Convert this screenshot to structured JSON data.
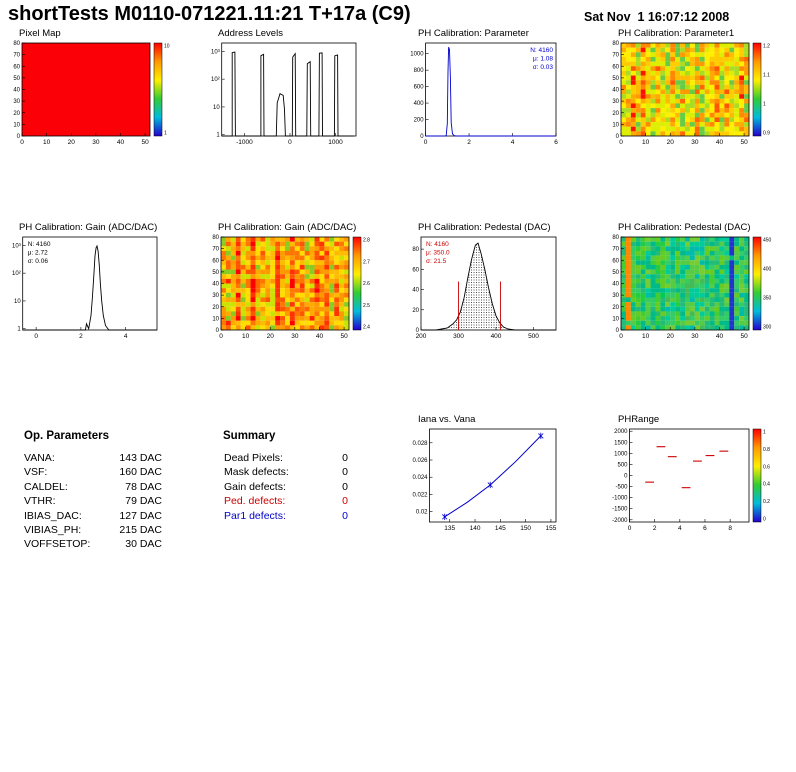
{
  "header": {
    "title": "shortTests M0110-071221.11:21 T+17a (C9)",
    "date": "Sat Nov  1 16:07:12 2008"
  },
  "op_parameters": {
    "title": "Op. Parameters",
    "rows": [
      {
        "label": "VANA:",
        "value": "143 DAC"
      },
      {
        "label": "VSF:",
        "value": "160 DAC"
      },
      {
        "label": "CALDEL:",
        "value": "78 DAC"
      },
      {
        "label": "VTHR:",
        "value": "79 DAC"
      },
      {
        "label": "IBIAS_DAC:",
        "value": "127 DAC"
      },
      {
        "label": "VIBIAS_PH:",
        "value": "215 DAC"
      },
      {
        "label": "VOFFSETOP:",
        "value": "30 DAC"
      }
    ]
  },
  "summary": {
    "title": "Summary",
    "rows": [
      {
        "label": "Dead Pixels:",
        "value": "0",
        "color": "#000000"
      },
      {
        "label": "Mask defects:",
        "value": "0",
        "color": "#000000"
      },
      {
        "label": "Gain defects:",
        "value": "0",
        "color": "#000000"
      },
      {
        "label": "Ped. defects:",
        "value": "0",
        "color": "#cc0000"
      },
      {
        "label": "Par1 defects:",
        "value": "0",
        "color": "#0000cc"
      }
    ]
  },
  "chart_data": [
    {
      "id": "pixel-map",
      "type": "heatmap",
      "title": "Pixel Map",
      "x_range": [
        0,
        52
      ],
      "x_ticks": [
        0,
        10,
        20,
        30,
        40,
        50
      ],
      "y_range": [
        0,
        80
      ],
      "y_ticks": [
        0,
        10,
        20,
        30,
        40,
        50,
        60,
        70,
        80
      ],
      "style": "uniform",
      "uniform_color": "#fb0007",
      "colorbar_labels": [
        "10",
        "1"
      ]
    },
    {
      "id": "address-levels",
      "type": "histogram",
      "title": "Address Levels",
      "log_y": true,
      "x_range": [
        -1500,
        1450
      ],
      "x_ticks": [
        -1000,
        0,
        1000
      ],
      "y_range": [
        0.9,
        2000
      ],
      "y_ticks": [
        [
          1,
          "1"
        ],
        [
          10,
          "10"
        ],
        [
          100,
          "10²"
        ],
        [
          1000,
          "10³"
        ]
      ],
      "line_color": "#000000",
      "outline": [
        [
          -1500,
          0.9
        ],
        [
          -1270,
          0.9
        ],
        [
          -1270,
          900
        ],
        [
          -1210,
          950
        ],
        [
          -1200,
          0.9
        ],
        [
          -640,
          0.9
        ],
        [
          -640,
          700
        ],
        [
          -580,
          780
        ],
        [
          -570,
          0.9
        ],
        [
          -300,
          0.9
        ],
        [
          -280,
          14
        ],
        [
          -220,
          30
        ],
        [
          -150,
          26
        ],
        [
          -120,
          8
        ],
        [
          -100,
          0.9
        ],
        [
          50,
          0.9
        ],
        [
          60,
          620
        ],
        [
          115,
          830
        ],
        [
          125,
          0.9
        ],
        [
          370,
          0.9
        ],
        [
          380,
          360
        ],
        [
          445,
          430
        ],
        [
          455,
          0.9
        ],
        [
          635,
          0.9
        ],
        [
          645,
          860
        ],
        [
          705,
          880
        ],
        [
          715,
          0.9
        ],
        [
          975,
          0.9
        ],
        [
          985,
          690
        ],
        [
          1045,
          740
        ],
        [
          1055,
          0.9
        ],
        [
          1400,
          0.9
        ]
      ]
    },
    {
      "id": "ph-parameter",
      "type": "histogram",
      "title": "PH Calibration: Parameter",
      "x_range": [
        0,
        6
      ],
      "x_ticks": [
        0,
        2,
        4,
        6
      ],
      "y_range": [
        0,
        1130
      ],
      "y_ticks": [
        [
          0,
          "0"
        ],
        [
          200,
          "200"
        ],
        [
          400,
          "400"
        ],
        [
          600,
          "600"
        ],
        [
          800,
          "800"
        ],
        [
          1000,
          "1000"
        ]
      ],
      "line_color": "#0000cc",
      "outline": [
        [
          0,
          0
        ],
        [
          0.9,
          0
        ],
        [
          0.95,
          6
        ],
        [
          1.0,
          150
        ],
        [
          1.03,
          780
        ],
        [
          1.06,
          1080
        ],
        [
          1.1,
          1050
        ],
        [
          1.14,
          700
        ],
        [
          1.18,
          160
        ],
        [
          1.24,
          25
        ],
        [
          1.32,
          4
        ],
        [
          1.42,
          0
        ],
        [
          6,
          0
        ]
      ],
      "stats": {
        "color": "#0000cc",
        "pos": "right",
        "lines": [
          "N: 4160",
          "μ: 1.08",
          "σ: 0.03"
        ]
      }
    },
    {
      "id": "ph-parameter1-map",
      "type": "heatmap",
      "title": "PH Calibration: Parameter1",
      "x_range": [
        0,
        52
      ],
      "x_ticks": [
        0,
        10,
        20,
        30,
        40,
        50
      ],
      "y_range": [
        0,
        80
      ],
      "y_ticks": [
        0,
        10,
        20,
        30,
        40,
        50,
        60,
        70,
        80
      ],
      "style": "noise",
      "palette": [
        "#ff1100",
        "#ff5500",
        "#ff8800",
        "#ffaa00",
        "#ffcc00",
        "#ffee00",
        "#ddee00",
        "#aadd22",
        "#66cc44",
        "#ffbb00",
        "#ff9900",
        "#ff6600"
      ],
      "colorbar_labels": [
        "1.2",
        "1.1",
        "1",
        "0.9"
      ]
    },
    {
      "id": "gain-hist",
      "type": "histogram",
      "title": "PH Calibration: Gain (ADC/DAC)",
      "log_y": true,
      "x_range": [
        -0.6,
        5.4
      ],
      "x_ticks": [
        0,
        2,
        4
      ],
      "y_range": [
        0.9,
        2000
      ],
      "y_ticks": [
        [
          1,
          "1"
        ],
        [
          10,
          "10"
        ],
        [
          100,
          "10²"
        ],
        [
          1000,
          "10³"
        ]
      ],
      "line_color": "#000000",
      "outline": [
        [
          -0.6,
          0.9
        ],
        [
          2.2,
          0.9
        ],
        [
          2.25,
          1.5
        ],
        [
          2.35,
          1
        ],
        [
          2.45,
          3
        ],
        [
          2.52,
          15
        ],
        [
          2.58,
          90
        ],
        [
          2.63,
          420
        ],
        [
          2.68,
          820
        ],
        [
          2.72,
          950
        ],
        [
          2.77,
          620
        ],
        [
          2.82,
          190
        ],
        [
          2.87,
          40
        ],
        [
          2.93,
          10
        ],
        [
          3.0,
          3
        ],
        [
          3.1,
          1.3
        ],
        [
          3.25,
          0.9
        ],
        [
          5.4,
          0.9
        ]
      ],
      "stats": {
        "color": "#000000",
        "pos": "left",
        "lines": [
          "N: 4160",
          "μ: 2.72",
          "σ: 0.06"
        ]
      }
    },
    {
      "id": "gain-map",
      "type": "heatmap",
      "title": "PH Calibration: Gain (ADC/DAC)",
      "x_range": [
        0,
        52
      ],
      "x_ticks": [
        0,
        10,
        20,
        30,
        40,
        50
      ],
      "y_range": [
        0,
        80
      ],
      "y_ticks": [
        0,
        10,
        20,
        30,
        40,
        50,
        60,
        70,
        80
      ],
      "style": "noise",
      "palette": [
        "#ff0000",
        "#ff3300",
        "#ff5500",
        "#ff7700",
        "#ff9900",
        "#ffbb00",
        "#ffdd00",
        "#cce200",
        "#88cc22",
        "#ffaa00",
        "#ff6600",
        "#ff2200"
      ],
      "colorbar_labels": [
        "2.8",
        "2.7",
        "2.6",
        "2.5",
        "2.4"
      ]
    },
    {
      "id": "pedestal-hist",
      "type": "histogram",
      "title": "PH Calibration: Pedestal (DAC)",
      "x_range": [
        200,
        560
      ],
      "x_ticks": [
        200,
        300,
        400,
        500
      ],
      "y_range": [
        0,
        92
      ],
      "y_ticks": [
        [
          0,
          "0"
        ],
        [
          20,
          "20"
        ],
        [
          40,
          "40"
        ],
        [
          60,
          "60"
        ],
        [
          80,
          "80"
        ]
      ],
      "line_color": "#000000",
      "fill": "dots",
      "outline": [
        [
          200,
          0
        ],
        [
          240,
          0
        ],
        [
          255,
          1
        ],
        [
          270,
          2
        ],
        [
          285,
          6
        ],
        [
          295,
          10
        ],
        [
          305,
          18
        ],
        [
          315,
          32
        ],
        [
          325,
          52
        ],
        [
          335,
          70
        ],
        [
          345,
          84
        ],
        [
          352,
          86
        ],
        [
          360,
          76
        ],
        [
          370,
          60
        ],
        [
          380,
          42
        ],
        [
          390,
          26
        ],
        [
          400,
          14
        ],
        [
          410,
          7
        ],
        [
          420,
          3
        ],
        [
          432,
          1
        ],
        [
          450,
          0
        ],
        [
          560,
          0
        ]
      ],
      "vlines": [
        {
          "x": 300,
          "h": 48,
          "color": "#cc0000"
        },
        {
          "x": 412,
          "h": 48,
          "color": "#cc0000"
        }
      ],
      "stats": {
        "color": "#cc0000",
        "pos": "left",
        "lines": [
          "N: 4160",
          "μ: 350.0",
          "σ: 21.5"
        ]
      }
    },
    {
      "id": "pedestal-map",
      "type": "heatmap",
      "title": "PH Calibration: Pedestal (DAC)",
      "x_range": [
        0,
        52
      ],
      "x_ticks": [
        0,
        10,
        20,
        30,
        40,
        50
      ],
      "y_range": [
        0,
        80
      ],
      "y_ticks": [
        0,
        10,
        20,
        30,
        40,
        50,
        60,
        70,
        80
      ],
      "style": "noise",
      "palette": [
        "#00cc55",
        "#22cc44",
        "#44cc33",
        "#66cc22",
        "#22bb77",
        "#00bb88",
        "#33cc66",
        "#55cc44",
        "#00cc99",
        "#77cc33",
        "#00bbaa",
        "#44bb55"
      ],
      "special_columns": [
        {
          "frac": 0.885,
          "color": "#2233cc"
        },
        {
          "frac": 0.02,
          "color": "#ff8800"
        }
      ],
      "colorbar_labels": [
        "450",
        "400",
        "350",
        "300"
      ]
    },
    {
      "id": "iana-vs-vana",
      "type": "line",
      "title": "Iana vs. Vana",
      "x_range": [
        131,
        156
      ],
      "x_ticks": [
        135,
        140,
        145,
        150,
        155
      ],
      "y_range": [
        0.0188,
        0.0296
      ],
      "y_ticks": [
        [
          0.02,
          "0.02"
        ],
        [
          0.022,
          "0.022"
        ],
        [
          0.024,
          "0.024"
        ],
        [
          0.026,
          "0.026"
        ],
        [
          0.028,
          "0.028"
        ]
      ],
      "line_color": "#0000cc",
      "points": [
        [
          134,
          0.0194
        ],
        [
          138.5,
          0.0211
        ],
        [
          143,
          0.0231
        ],
        [
          148,
          0.0258
        ],
        [
          153,
          0.0288
        ]
      ],
      "markers": [
        [
          134,
          0.0194
        ],
        [
          143,
          0.0231
        ],
        [
          153,
          0.0288
        ]
      ]
    },
    {
      "id": "phrange",
      "type": "dashes",
      "title": "PHRange",
      "x_range": [
        0,
        9.5
      ],
      "x_ticks": [
        0,
        2,
        4,
        6,
        8
      ],
      "y_range": [
        -2100,
        2100
      ],
      "y_ticks": [
        [
          2000,
          "2000"
        ],
        [
          1500,
          "1500"
        ],
        [
          1000,
          "1000"
        ],
        [
          500,
          "500"
        ],
        [
          0,
          "0"
        ],
        [
          -500,
          "-500"
        ],
        [
          -1000,
          "-1000"
        ],
        [
          -1500,
          "-1500"
        ],
        [
          -2000,
          "-2000"
        ]
      ],
      "dash_color": "#cc0000",
      "dashes": [
        [
          1.6,
          -300
        ],
        [
          2.5,
          1300
        ],
        [
          3.4,
          850
        ],
        [
          4.5,
          -550
        ],
        [
          5.4,
          650
        ],
        [
          6.4,
          900
        ],
        [
          7.5,
          1100
        ]
      ],
      "colorbar_labels": [
        "1",
        "0.8",
        "0.6",
        "0.4",
        "0.2",
        "0"
      ]
    }
  ]
}
